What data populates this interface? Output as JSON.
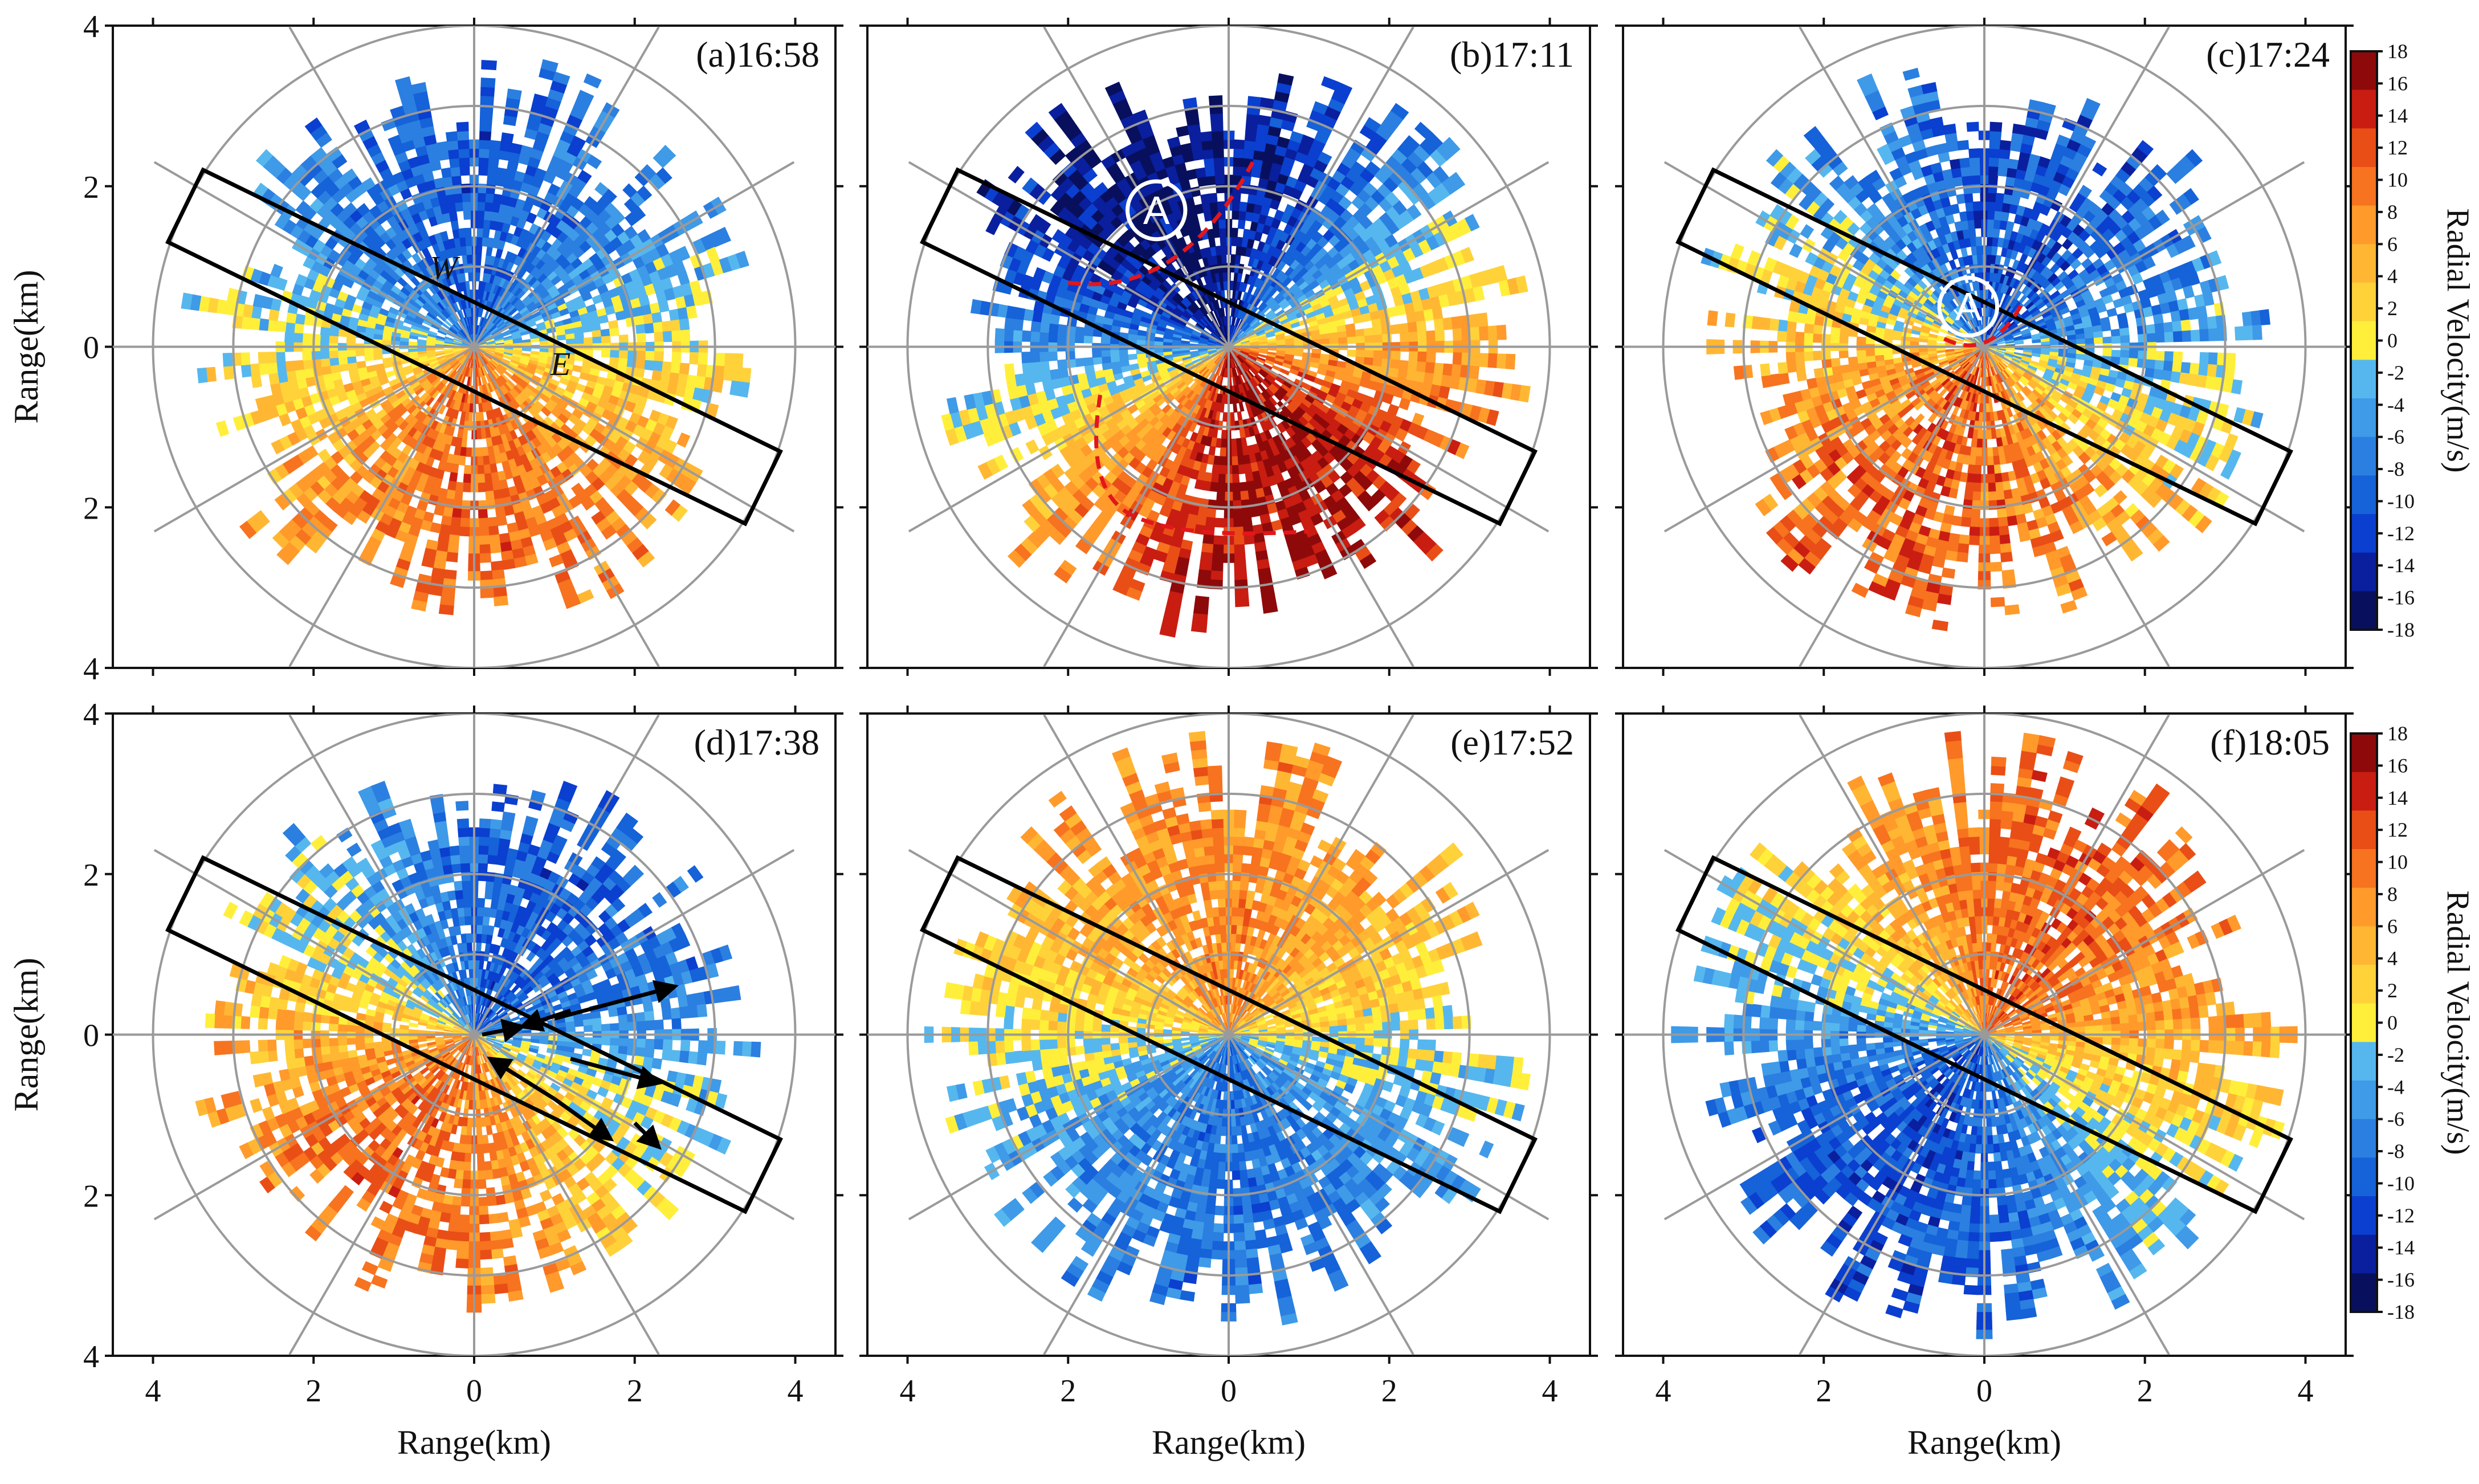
{
  "chart_data": [
    {
      "type": "heatmap",
      "subtype": "ppi-radial-velocity",
      "title": "(a)16:58",
      "pattern": {
        "dir_deg": 180,
        "strength": 0.55,
        "noise": 0.2,
        "radius": 3.1,
        "seed": 11,
        "gaps": 0.14
      },
      "annotations": {
        "edge_labels": [
          "W",
          "E"
        ]
      }
    },
    {
      "type": "heatmap",
      "subtype": "ppi-radial-velocity",
      "title": "(b)17:11",
      "pattern": {
        "dir_deg": 160,
        "strength": 0.9,
        "noise": 0.18,
        "radius": 3.2,
        "seed": 23,
        "gaps": 0.12
      },
      "annotations": {
        "vortex": "A"
      }
    },
    {
      "type": "heatmap",
      "subtype": "ppi-radial-velocity",
      "title": "(c)17:24",
      "pattern": {
        "dir_deg": 200,
        "strength": 0.6,
        "noise": 0.25,
        "radius": 3.1,
        "seed": 37,
        "gaps": 0.16
      },
      "annotations": {
        "vortex": "A"
      }
    },
    {
      "type": "heatmap",
      "subtype": "ppi-radial-velocity",
      "title": "(d)17:38",
      "pattern": {
        "dir_deg": 210,
        "strength": 0.55,
        "noise": 0.2,
        "radius": 3.0,
        "seed": 41,
        "gaps": 0.18
      },
      "annotations": {
        "arrows": "divergent flow vectors"
      }
    },
    {
      "type": "heatmap",
      "subtype": "ppi-radial-velocity",
      "title": "(e)17:52",
      "pattern": {
        "dir_deg": 0,
        "strength": 0.45,
        "noise": 0.18,
        "radius": 3.25,
        "seed": 53,
        "gaps": 0.1
      },
      "annotations": {}
    },
    {
      "type": "heatmap",
      "subtype": "ppi-radial-velocity",
      "title": "(f)18:05",
      "pattern": {
        "dir_deg": 30,
        "strength": 0.6,
        "noise": 0.18,
        "radius": 3.3,
        "seed": 67,
        "gaps": 0.12
      },
      "annotations": {}
    }
  ],
  "axes": {
    "xlabel": "Range(km)",
    "ylabel": "Range(km)",
    "xlim": [
      -4.4,
      4.4
    ],
    "ylim": [
      -4,
      4
    ],
    "x_ticks": [
      "4",
      "2",
      "0",
      "2",
      "4"
    ],
    "y_ticks": [
      "4",
      "2",
      "0",
      "2",
      "4"
    ],
    "range_rings_km": [
      1,
      2,
      3,
      4
    ],
    "spokes_deg": [
      0,
      30,
      60,
      90,
      120,
      150
    ]
  },
  "colorbar": {
    "title": "Radial Velocity(m/s)",
    "vmin": -18,
    "vmax": 18,
    "ticks": [
      "18",
      "16",
      "14",
      "12",
      "10",
      "8",
      "6",
      "4",
      "2",
      "0",
      "-2",
      "-4",
      "-6",
      "-8",
      "-10",
      "-12",
      "-14",
      "-16",
      "-18"
    ],
    "colors": [
      "#08105e",
      "#0a1f9e",
      "#0b3fcf",
      "#1562d9",
      "#2b7fe0",
      "#3f9ae8",
      "#56b7ee",
      "#ffef3b",
      "#ffd23a",
      "#ffb733",
      "#ff9a2b",
      "#f7731f",
      "#e94e17",
      "#c91d12",
      "#8e0a0a"
    ]
  },
  "analysis_box": {
    "angle_deg": -26,
    "half_length_km": 4.0,
    "half_width_km": 0.5
  }
}
